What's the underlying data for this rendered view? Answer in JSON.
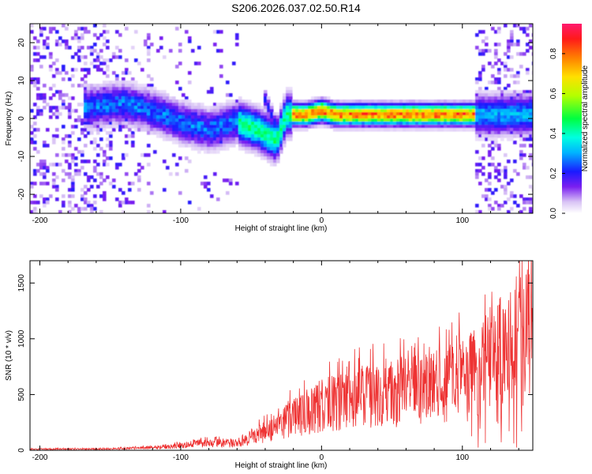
{
  "title": "S206.2026.037.02.50.R14",
  "chart_data": [
    {
      "type": "heatmap",
      "name": "spectrogram",
      "xlabel": "Height of straight line (km)",
      "ylabel": "Frequency (Hz)",
      "xlim": [
        -207,
        150
      ],
      "ylim": [
        -25,
        25
      ],
      "xticks": [
        -200,
        -100,
        0,
        100
      ],
      "yticks": [
        -20,
        -10,
        0,
        10,
        20
      ],
      "colorbar": {
        "label": "Normalized spectral amplitude",
        "range": [
          0,
          0.95
        ],
        "ticks": [
          0.0,
          0.2,
          0.4,
          0.6,
          0.8
        ]
      },
      "ridge": [
        {
          "x": -165,
          "y": 3
        },
        {
          "x": -140,
          "y": 4
        },
        {
          "x": -120,
          "y": 2
        },
        {
          "x": -100,
          "y": -1
        },
        {
          "x": -80,
          "y": -3
        },
        {
          "x": -60,
          "y": -1
        },
        {
          "x": -45,
          "y": -3
        },
        {
          "x": -32,
          "y": -6
        },
        {
          "x": -25,
          "y": 1
        },
        {
          "x": -10,
          "y": 1
        },
        {
          "x": 0,
          "y": 2
        },
        {
          "x": 10,
          "y": 1
        },
        {
          "x": 30,
          "y": 1
        },
        {
          "x": 50,
          "y": 1
        },
        {
          "x": 70,
          "y": 1
        },
        {
          "x": 90,
          "y": 1
        },
        {
          "x": 108,
          "y": 1
        }
      ]
    },
    {
      "type": "line",
      "name": "snr",
      "xlabel": "Height of straight line (km)",
      "ylabel": "SNR (10 * v/v)",
      "xlim": [
        -207,
        150
      ],
      "ylim": [
        0,
        1700
      ],
      "xticks": [
        -200,
        -100,
        0,
        100
      ],
      "yticks": [
        0,
        500,
        1000,
        1500
      ],
      "color": "#ee3333",
      "envelope": [
        {
          "x": -207,
          "y": 15
        },
        {
          "x": -150,
          "y": 20
        },
        {
          "x": -110,
          "y": 45
        },
        {
          "x": -90,
          "y": 90
        },
        {
          "x": -70,
          "y": 110
        },
        {
          "x": -60,
          "y": 80
        },
        {
          "x": -45,
          "y": 220
        },
        {
          "x": -35,
          "y": 300
        },
        {
          "x": -25,
          "y": 420
        },
        {
          "x": -10,
          "y": 560
        },
        {
          "x": 0,
          "y": 640
        },
        {
          "x": 20,
          "y": 720
        },
        {
          "x": 40,
          "y": 780
        },
        {
          "x": 60,
          "y": 830
        },
        {
          "x": 80,
          "y": 900
        },
        {
          "x": 100,
          "y": 1000
        },
        {
          "x": 110,
          "y": 1100
        },
        {
          "x": 125,
          "y": 1300
        },
        {
          "x": 140,
          "y": 1450
        },
        {
          "x": 150,
          "y": 1500
        }
      ]
    }
  ]
}
